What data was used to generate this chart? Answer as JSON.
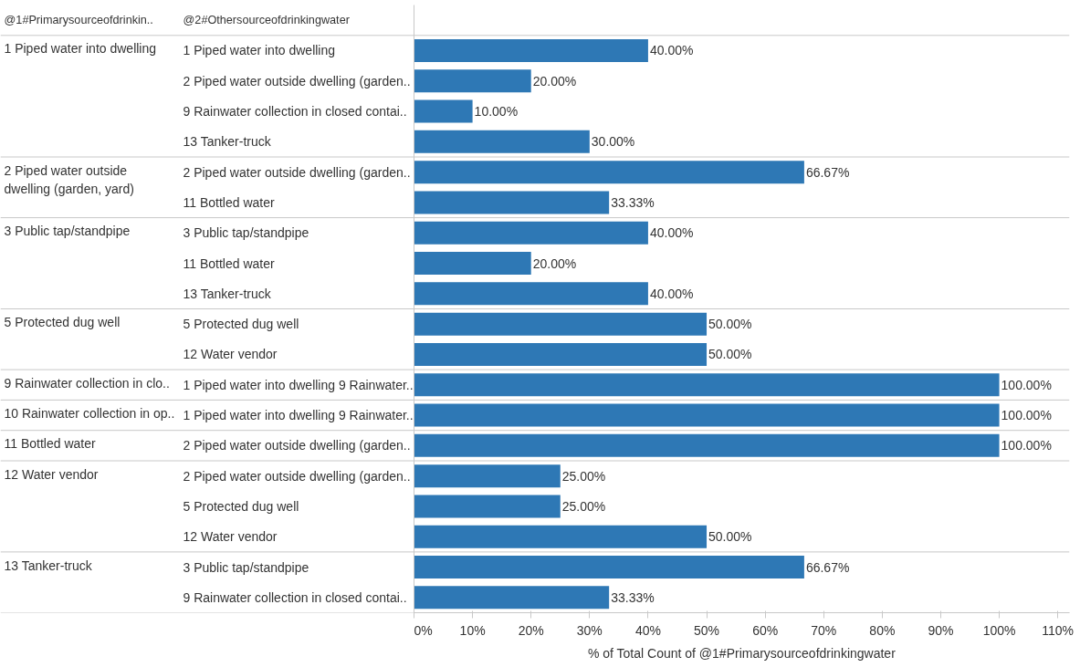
{
  "chart_data": {
    "type": "bar",
    "orientation": "horizontal",
    "xlabel": "% of Total Count of @1#Primarysourceofdrinkingwater",
    "annotations": [
      "@1#Primarysourceofdrinkin..",
      "@2#Othersourceofdrinkingwater"
    ],
    "categories": [
      "1 Piped water into dwelling",
      "2 Piped water outside dwelling (garden..",
      "9 Rainwater collection in closed contai..",
      "13 Tanker-truck",
      "2 Piped water outside dwelling (garden..",
      "11 Bottled water",
      "3 Public tap/standpipe",
      "11 Bottled water",
      "13 Tanker-truck",
      "5 Protected dug well",
      "12 Water vendor",
      "1 Piped water into dwelling 9 Rainwater..",
      "1 Piped water into dwelling 9 Rainwater..",
      "2 Piped water outside dwelling (garden..",
      "2 Piped water outside dwelling (garden..",
      "5 Protected dug well",
      "12 Water vendor",
      "3 Public tap/standpipe",
      "9 Rainwater collection in closed contai.."
    ],
    "y_categories": [
      "1 Piped water into dwelling",
      null,
      null,
      null,
      "2 Piped water outside dwelling (garden, yard)",
      null,
      "3 Public tap/standpipe",
      null,
      null,
      "5 Protected dug well",
      null,
      "9 Rainwater collection in clo..",
      "10 Rainwater collection in op..",
      "11 Bottled water",
      "12 Water vendor",
      null,
      null,
      "13 Tanker-truck",
      null
    ],
    "values": [
      40,
      20,
      10,
      30,
      66.67,
      33.33,
      40,
      20,
      40,
      50,
      50,
      100,
      100,
      100,
      25,
      25,
      50,
      66.67,
      33.33
    ],
    "value_labels": [
      "40.00%",
      "20.00%",
      "10.00%",
      "30.00%",
      "66.67%",
      "33.33%",
      "40.00%",
      "20.00%",
      "40.00%",
      "50.00%",
      "50.00%",
      "100.00%",
      "100.00%",
      "100.00%",
      "25.00%",
      "25.00%",
      "50.00%",
      "66.67%",
      "33.33%"
    ],
    "color": "#2e78b5",
    "xlim": [
      0,
      112
    ],
    "xticks": [
      {
        "value": 0,
        "label": "0%"
      },
      {
        "value": 10,
        "label": "10%"
      },
      {
        "value": 20,
        "label": "20%"
      },
      {
        "value": 30,
        "label": "30%"
      },
      {
        "value": 40,
        "label": "40%"
      },
      {
        "value": 50,
        "label": "50%"
      },
      {
        "value": 60,
        "label": "60%"
      },
      {
        "value": 70,
        "label": "70%"
      },
      {
        "value": 80,
        "label": "80%"
      },
      {
        "value": 90,
        "label": "90%"
      },
      {
        "value": 100,
        "label": "100%"
      },
      {
        "value": 110,
        "label": "110%"
      }
    ],
    "grid": false
  }
}
